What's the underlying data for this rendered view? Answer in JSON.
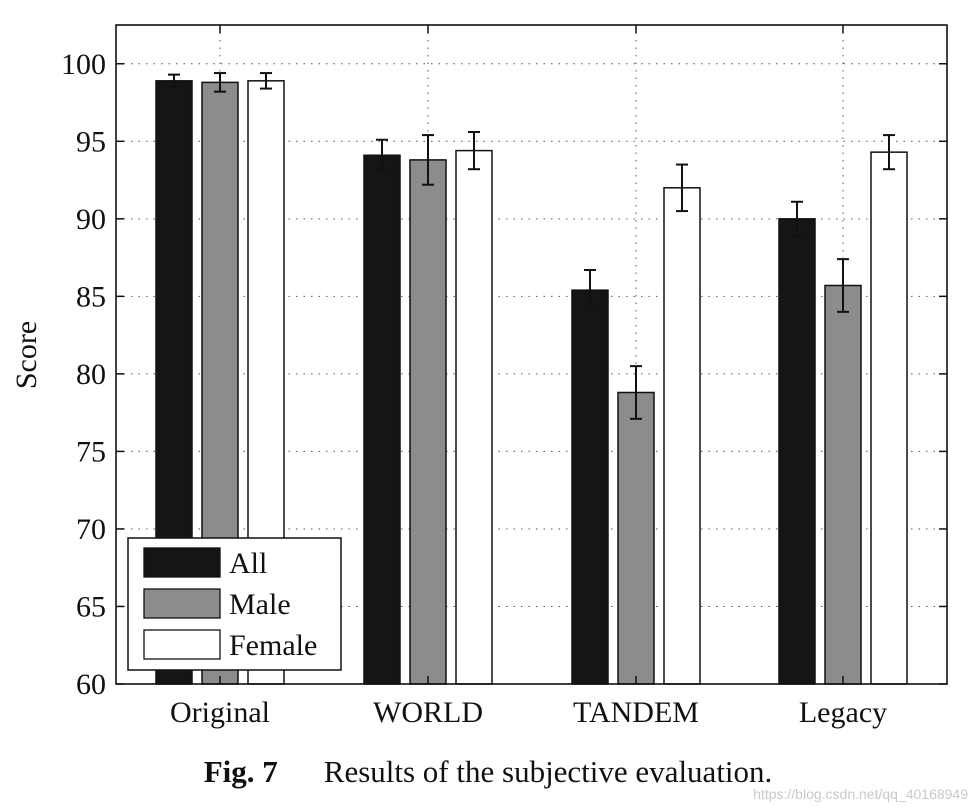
{
  "chart_data": {
    "type": "bar",
    "categories": [
      "Original",
      "WORLD",
      "TANDEM",
      "Legacy"
    ],
    "series": [
      {
        "name": "All",
        "values": [
          98.9,
          94.1,
          85.4,
          90.0
        ],
        "error": [
          0.4,
          1.0,
          1.3,
          1.1
        ]
      },
      {
        "name": "Male",
        "values": [
          98.8,
          93.8,
          78.8,
          85.7
        ],
        "error": [
          0.6,
          1.6,
          1.7,
          1.7
        ]
      },
      {
        "name": "Female",
        "values": [
          98.9,
          94.4,
          92.0,
          94.3
        ],
        "error": [
          0.5,
          1.2,
          1.5,
          1.1
        ]
      }
    ],
    "colors": [
      "#151515",
      "#8c8c8c",
      "#ffffff"
    ],
    "xlabel": "",
    "ylabel": "Score",
    "ylim": [
      60,
      102.5
    ],
    "yticks": [
      60,
      65,
      70,
      75,
      80,
      85,
      90,
      95,
      100
    ],
    "grid": true,
    "legend_position": "lower-left"
  },
  "caption": {
    "label": "Fig. 7",
    "text": "Results of the subjective evaluation."
  },
  "watermark": "https://blog.csdn.net/qq_40168949"
}
